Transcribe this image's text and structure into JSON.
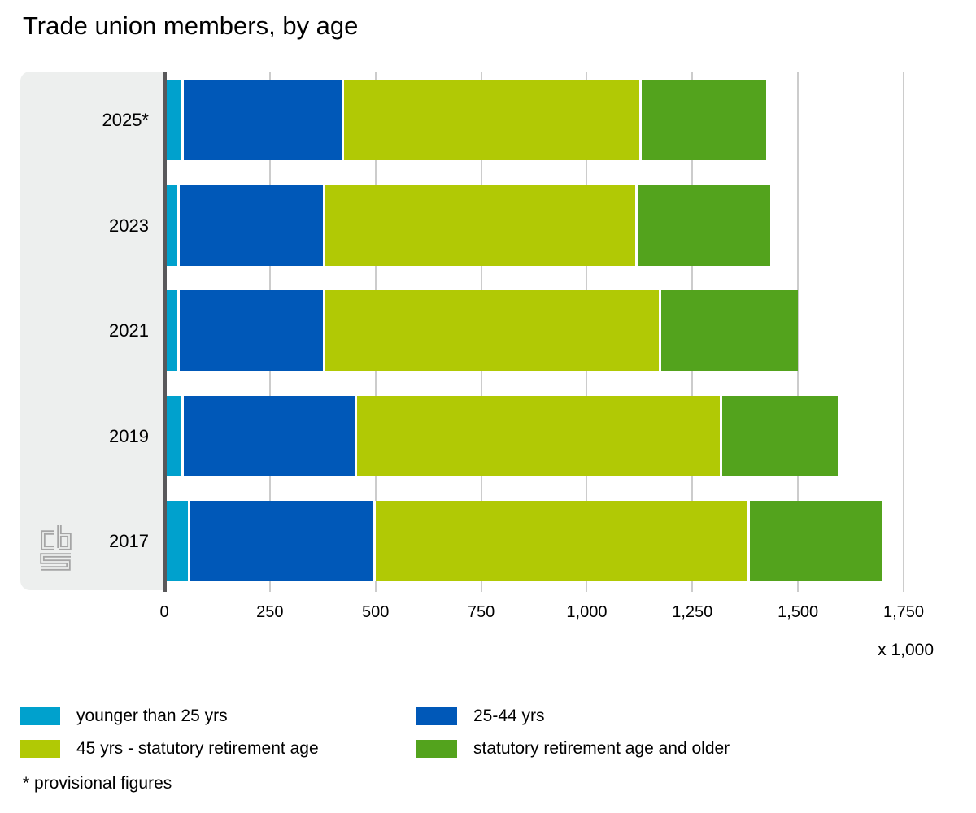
{
  "title": "Trade union members, by age",
  "footnote": "* provisional figures",
  "x_axis": {
    "unit": "x 1,000",
    "tick_labels": [
      "0",
      "250",
      "500",
      "750",
      "1,000",
      "1,250",
      "1,500",
      "1,750"
    ],
    "tick_values": [
      0,
      250,
      500,
      750,
      1000,
      1250,
      1500,
      1750
    ],
    "max": 1750
  },
  "colors": {
    "axis_line": "#58585a",
    "gridline": "#cccccc",
    "sidebar_bg": "#edefee",
    "logo_gray": "#a5a5a5"
  },
  "chart_data": {
    "type": "bar",
    "orientation": "horizontal",
    "stacked": true,
    "grid": true,
    "legend_position": "bottom",
    "title": "Trade union members, by age",
    "xlabel": "x 1,000",
    "ylabel": "",
    "xlim": [
      0,
      1750
    ],
    "categories": [
      "2025*",
      "2023",
      "2021",
      "2019",
      "2017"
    ],
    "series": [
      {
        "name": "younger than 25 yrs",
        "color": "#00a1cd",
        "values": [
          40,
          30,
          30,
          40,
          55
        ]
      },
      {
        "name": "25-44 yrs",
        "color": "#0058b8",
        "values": [
          380,
          345,
          345,
          410,
          440
        ]
      },
      {
        "name": "45 yrs - statutory retirement age",
        "color": "#b1c905",
        "values": [
          705,
          740,
          795,
          865,
          885
        ]
      },
      {
        "name": "statutory retirement age and older",
        "color": "#53a31d",
        "values": [
          300,
          320,
          330,
          280,
          320
        ]
      }
    ],
    "totals": [
      1425,
      1435,
      1500,
      1595,
      1700
    ]
  }
}
